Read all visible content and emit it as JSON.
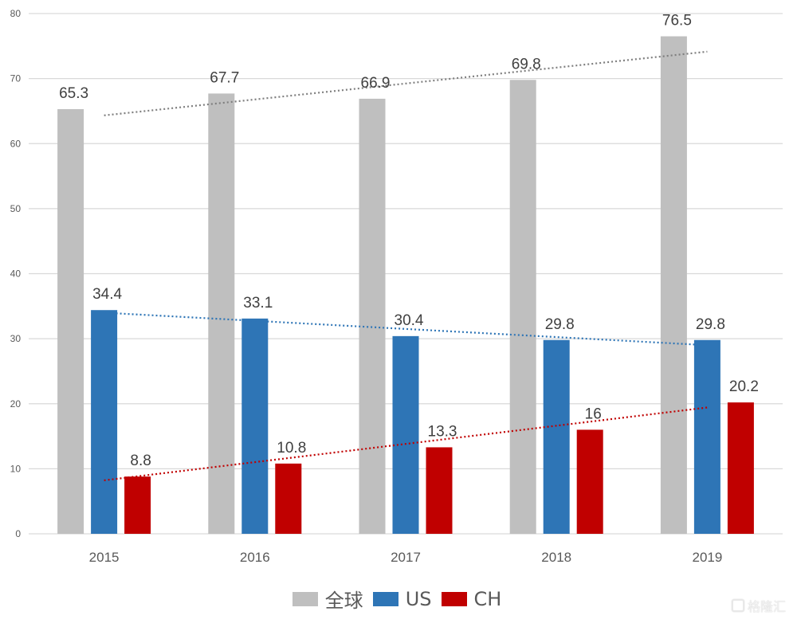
{
  "chart_data": {
    "type": "bar",
    "title": "",
    "xlabel": "",
    "ylabel": "",
    "categories": [
      "2015",
      "2016",
      "2017",
      "2018",
      "2019"
    ],
    "ylim": [
      0,
      80
    ],
    "yticks": [
      0,
      10,
      20,
      30,
      40,
      50,
      60,
      70,
      80
    ],
    "grid": true,
    "legend_position": "bottom",
    "series": [
      {
        "name": "全球",
        "color": "#bfbfbf",
        "trend_color": "#7f7f7f",
        "values": [
          65.3,
          67.7,
          66.9,
          69.8,
          76.5
        ],
        "labels": [
          "65.3",
          "67.7",
          "66.9",
          "69.8",
          "76.5"
        ],
        "trendline": "linear, dotted"
      },
      {
        "name": "US",
        "color": "#2e75b6",
        "trend_color": "#2e75b6",
        "values": [
          34.4,
          33.1,
          30.4,
          29.8,
          29.8
        ],
        "labels": [
          "34.4",
          "33.1",
          "30.4",
          "29.8",
          "29.8"
        ],
        "trendline": "linear, dotted"
      },
      {
        "name": "CH",
        "color": "#c00000",
        "trend_color": "#c00000",
        "values": [
          8.8,
          10.8,
          13.3,
          16,
          20.2
        ],
        "labels": [
          "8.8",
          "10.8",
          "13.3",
          "16",
          "20.2"
        ],
        "trendline": "linear, dotted"
      }
    ]
  },
  "watermark": {
    "text": "格隆汇",
    "icon": "gelonghui-logo-icon"
  }
}
